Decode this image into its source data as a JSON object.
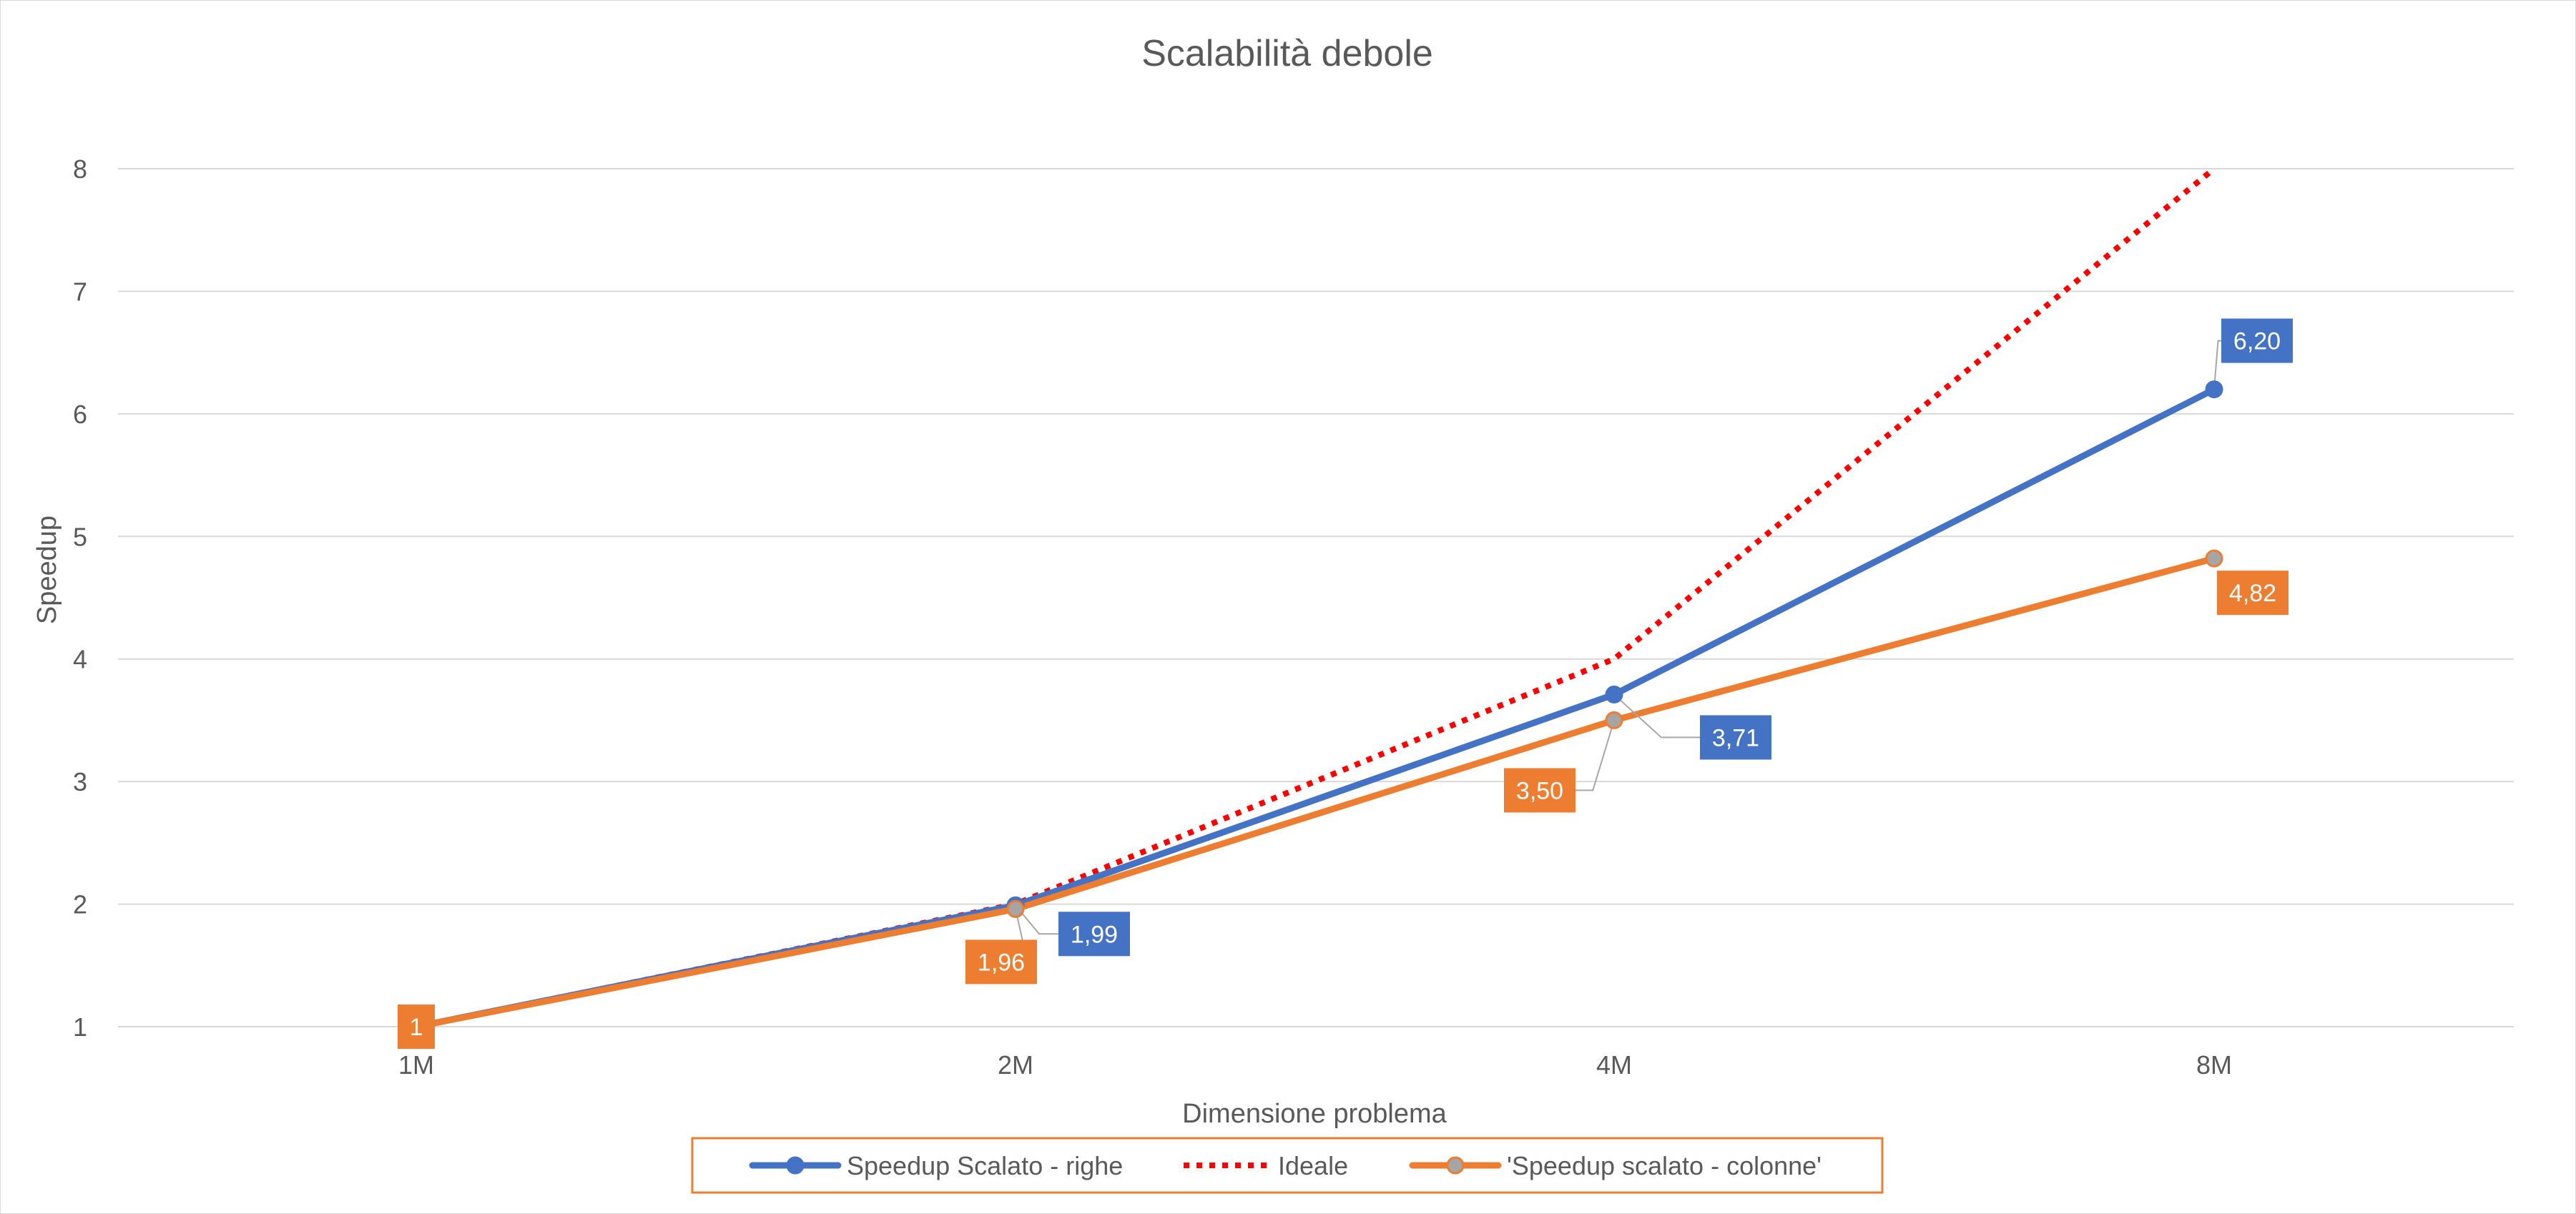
{
  "chart_data": {
    "type": "line",
    "title": "Scalabilità debole",
    "xlabel": "Dimensione problema",
    "ylabel": "Speedup",
    "categories": [
      "1M",
      "2M",
      "4M",
      "8M"
    ],
    "ylim": [
      1,
      8
    ],
    "yticks": [
      1,
      2,
      3,
      4,
      5,
      6,
      7,
      8
    ],
    "grid": true,
    "legend_position": "bottom",
    "series": [
      {
        "name": "Speedup Scalato - righe",
        "values": [
          1,
          1.99,
          3.71,
          6.2
        ],
        "labels": [
          "",
          "1,99",
          "3,71",
          "6,20"
        ],
        "color": "#4472c4",
        "style": "solid",
        "markers": true
      },
      {
        "name": "Ideale",
        "values": [
          1,
          2,
          4,
          8
        ],
        "labels": [
          "",
          "",
          "",
          ""
        ],
        "color": "#ff0000",
        "style": "dotted",
        "markers": false
      },
      {
        "name": "'Speedup scalato - colonne'",
        "values": [
          1,
          1.96,
          3.5,
          4.82
        ],
        "labels": [
          "1",
          "1,96",
          "3,50",
          "4,82"
        ],
        "color": "#ed7d31",
        "marker_color": "#a5a5a5",
        "style": "solid",
        "markers": true
      }
    ]
  }
}
